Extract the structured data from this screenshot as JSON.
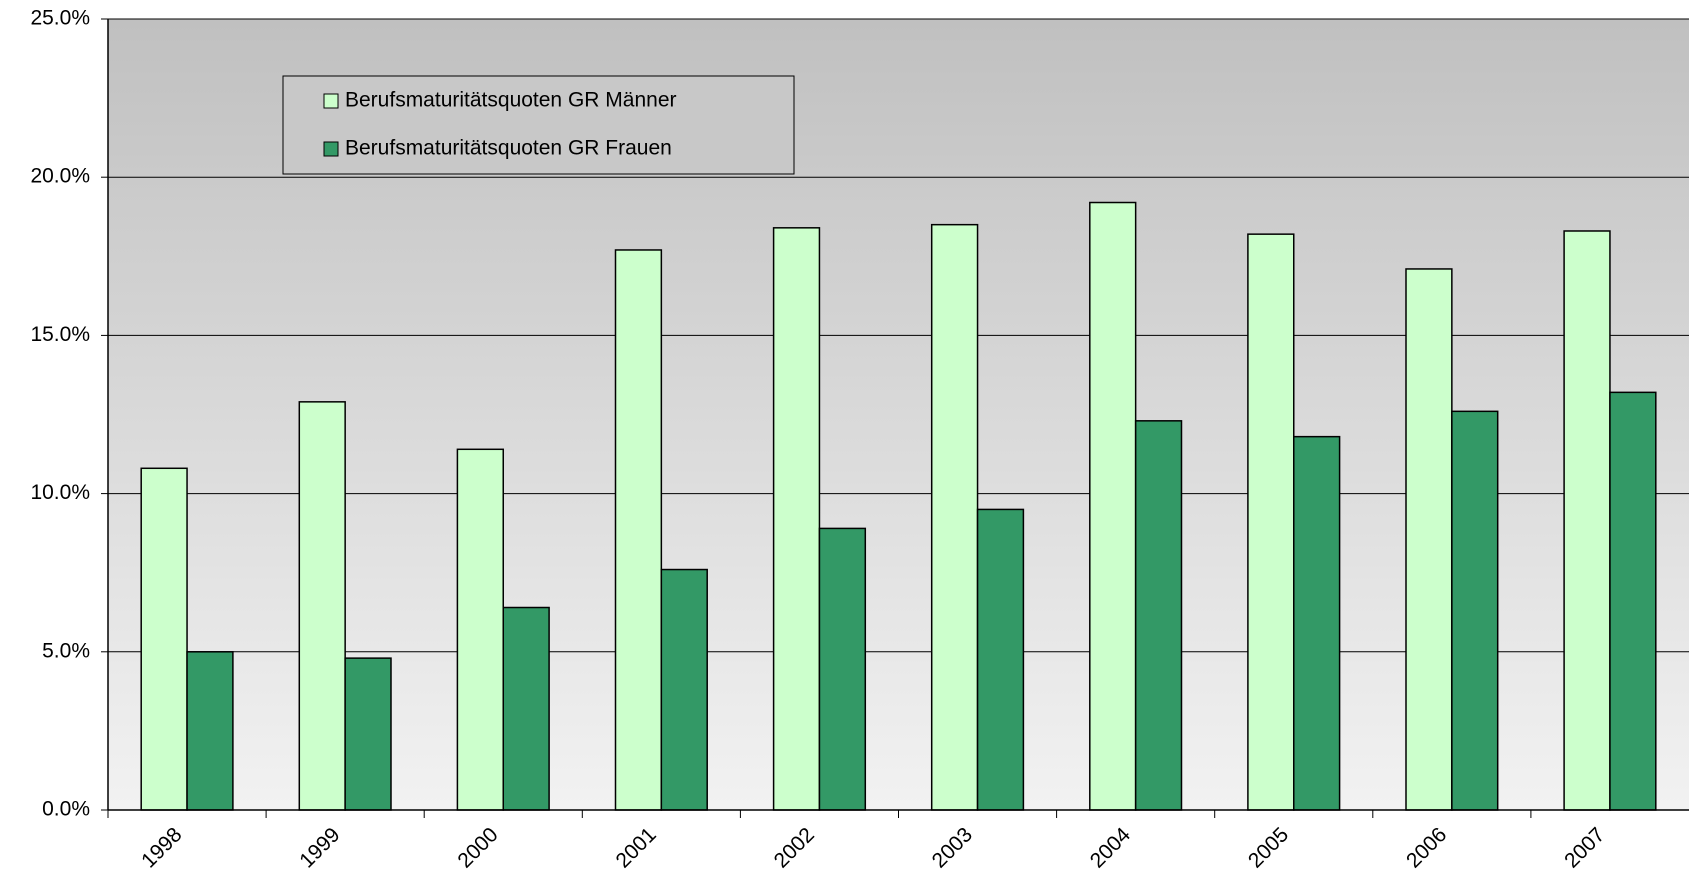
{
  "chart_data": {
    "type": "bar",
    "categories": [
      "1998",
      "1999",
      "2000",
      "2001",
      "2002",
      "2003",
      "2004",
      "2005",
      "2006",
      "2007"
    ],
    "series": [
      {
        "name": "Berufsmaturitätsquoten GR Männer",
        "color": "#ccffcc",
        "values": [
          10.8,
          12.9,
          11.4,
          17.7,
          18.4,
          18.5,
          19.2,
          18.2,
          17.1,
          18.3
        ]
      },
      {
        "name": "Berufsmaturitätsquoten GR Frauen",
        "color": "#339966",
        "values": [
          5.0,
          4.8,
          6.4,
          7.6,
          8.9,
          9.5,
          12.3,
          11.8,
          12.6,
          13.2
        ]
      }
    ],
    "ylim": [
      0,
      25
    ],
    "yticks": [
      {
        "value": 0,
        "label": "0.0%"
      },
      {
        "value": 5,
        "label": "5.0%"
      },
      {
        "value": 10,
        "label": "10.0%"
      },
      {
        "value": 15,
        "label": "15.0%"
      },
      {
        "value": 20,
        "label": "20.0%"
      },
      {
        "value": 25,
        "label": "25.0%"
      }
    ],
    "grid": true
  }
}
